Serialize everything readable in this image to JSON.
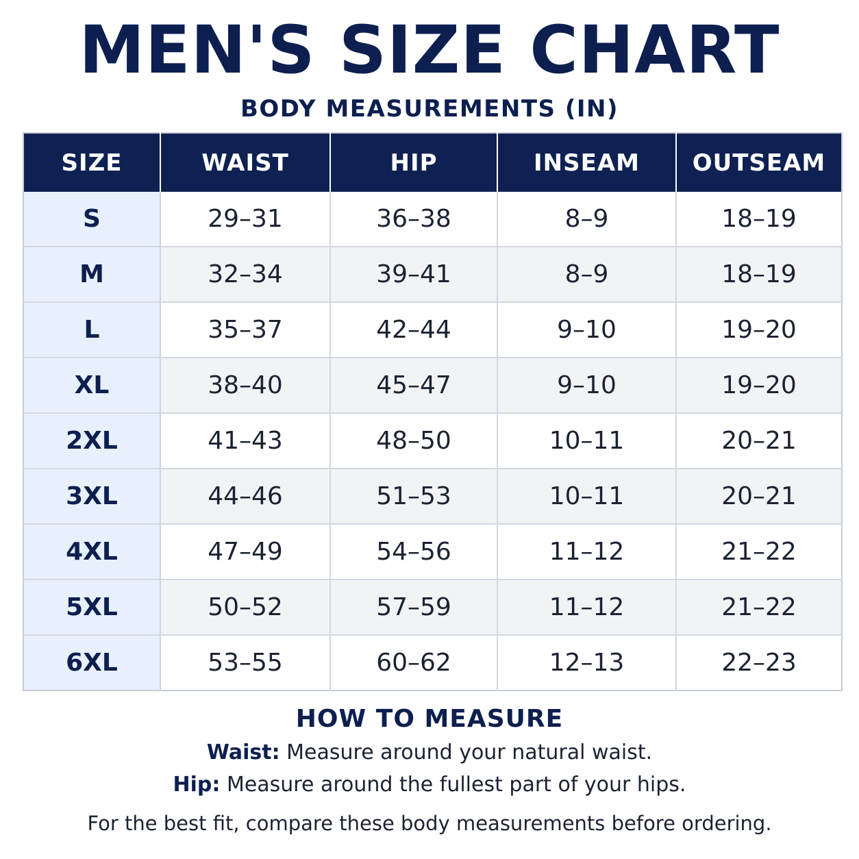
{
  "header": {
    "title": "MEN'S SIZE CHART",
    "subtitle": "BODY MEASUREMENTS (IN)"
  },
  "table": {
    "columns": [
      "SIZE",
      "WAIST",
      "HIP",
      "INSEAM",
      "OUTSEAM"
    ],
    "rows": [
      [
        "S",
        "29–31",
        "36–38",
        "8–9",
        "18–19"
      ],
      [
        "M",
        "32–34",
        "39–41",
        "8–9",
        "18–19"
      ],
      [
        "L",
        "35–37",
        "42–44",
        "9–10",
        "19–20"
      ],
      [
        "XL",
        "38–40",
        "45–47",
        "9–10",
        "19–20"
      ],
      [
        "2XL",
        "41–43",
        "48–50",
        "10–11",
        "20–21"
      ],
      [
        "3XL",
        "44–46",
        "51–53",
        "10–11",
        "20–21"
      ],
      [
        "4XL",
        "47–49",
        "54–56",
        "11–12",
        "21–22"
      ],
      [
        "5XL",
        "50–52",
        "57–59",
        "11–12",
        "21–22"
      ],
      [
        "6XL",
        "53–55",
        "60–62",
        "12–13",
        "22–23"
      ]
    ]
  },
  "how_to_measure": {
    "title": "HOW TO MEASURE",
    "waist_label": "Waist:",
    "waist_text": " Measure around your natural waist.",
    "hip_label": "Hip:",
    "hip_text": " Measure around the fullest part of your hips.",
    "note": "For the best fit, compare these body measurements before ordering."
  },
  "colors": {
    "header_bg": "#0e2152",
    "title_text": "#0d1f4f",
    "size_column_bg": "#e7f0fc",
    "stripe_bg": "#f2f3f5"
  }
}
